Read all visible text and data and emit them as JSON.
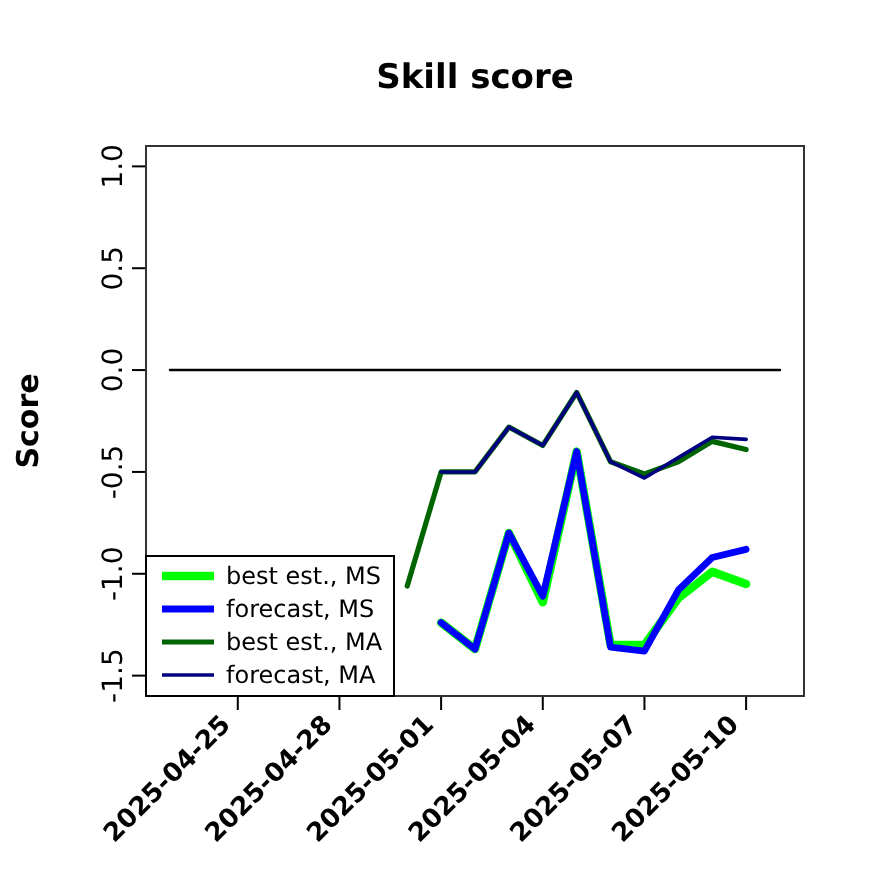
{
  "chart_data": {
    "type": "line",
    "title": "Skill score",
    "ylabel": "Score",
    "x": [
      "2025-04-30",
      "2025-05-01",
      "2025-05-02",
      "2025-05-03",
      "2025-05-04",
      "2025-05-05",
      "2025-05-06",
      "2025-05-07",
      "2025-05-08",
      "2025-05-09",
      "2025-05-10"
    ],
    "xlim": [
      "2025-04-22T07:00",
      "2025-05-11T17:00"
    ],
    "xticks": [
      {
        "value": "2025-04-25",
        "label": "2025-04-25"
      },
      {
        "value": "2025-04-28",
        "label": "2025-04-28"
      },
      {
        "value": "2025-05-01",
        "label": "2025-05-01"
      },
      {
        "value": "2025-05-04",
        "label": "2025-05-04"
      },
      {
        "value": "2025-05-07",
        "label": "2025-05-07"
      },
      {
        "value": "2025-05-10",
        "label": "2025-05-10"
      }
    ],
    "ylim": [
      -1.6,
      1.1
    ],
    "yticks": [
      {
        "value": -1.5,
        "label": "-1.5"
      },
      {
        "value": -1,
        "label": "-1.0"
      },
      {
        "value": -0.5,
        "label": "-0.5"
      },
      {
        "value": 0,
        "label": "0.0"
      },
      {
        "value": 0.5,
        "label": "0.5"
      },
      {
        "value": 1,
        "label": "1.0"
      }
    ],
    "series": [
      {
        "name": "best est., MS",
        "color": "#00ff00",
        "values": [
          null,
          -1.24,
          -1.37,
          -0.8,
          -1.14,
          -0.4,
          -1.35,
          -1.35,
          -1.12,
          -0.99,
          -1.05
        ]
      },
      {
        "name": "forecast, MS",
        "color": "#0000ff",
        "values": [
          null,
          -1.24,
          -1.37,
          -0.8,
          -1.11,
          -0.4,
          -1.36,
          -1.38,
          -1.08,
          -0.92,
          -0.88
        ]
      },
      {
        "name": "best est., MA",
        "color": "#006400",
        "values": [
          -1.06,
          -0.5,
          -0.5,
          -0.28,
          -0.37,
          -0.11,
          -0.45,
          -0.51,
          -0.45,
          -0.35,
          -0.39
        ]
      },
      {
        "name": "forecast, MA",
        "color": "#000080",
        "values": [
          null,
          -0.5,
          -0.5,
          -0.28,
          -0.37,
          -0.11,
          -0.45,
          -0.53,
          -0.43,
          -0.33,
          -0.34
        ]
      },
      {
        "type": "line",
        "color": "#000000",
        "x": [
          "2025-04-23",
          "2025-05-11"
        ],
        "values": [
          0,
          0
        ]
      }
    ],
    "legend": "bottom left",
    "grid": false,
    "marker": "none",
    "line_style": "solid"
  }
}
